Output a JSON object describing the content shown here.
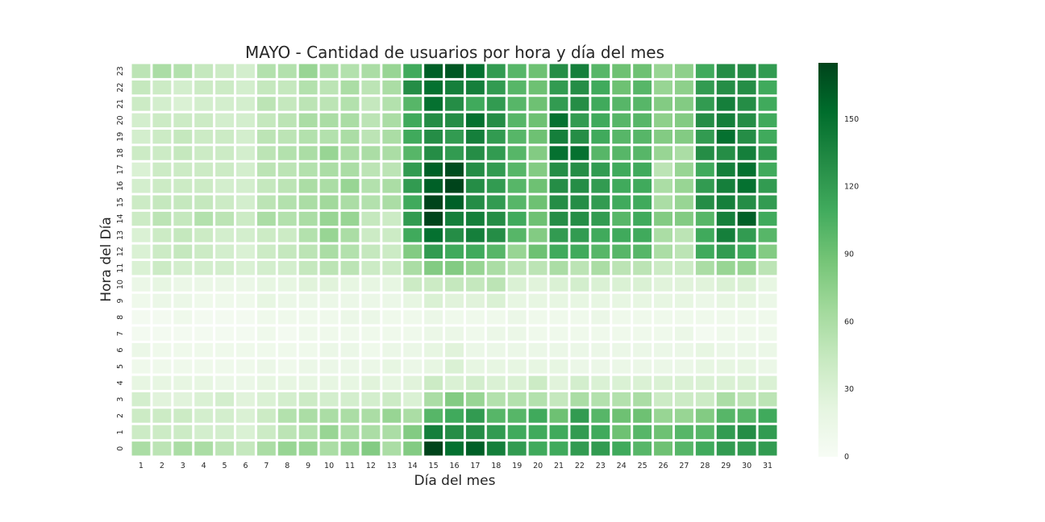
{
  "chart_data": {
    "type": "heatmap",
    "title": "MAYO - Cantidad de usuarios por hora y día del mes",
    "xlabel": "Día del mes",
    "ylabel": "Hora del Día",
    "x": [
      "1",
      "2",
      "3",
      "4",
      "5",
      "6",
      "7",
      "8",
      "9",
      "10",
      "11",
      "12",
      "13",
      "14",
      "15",
      "16",
      "17",
      "18",
      "19",
      "20",
      "21",
      "22",
      "23",
      "24",
      "25",
      "26",
      "27",
      "28",
      "29",
      "30",
      "31"
    ],
    "y": [
      "23",
      "22",
      "21",
      "20",
      "19",
      "18",
      "17",
      "16",
      "15",
      "14",
      "13",
      "12",
      "11",
      "10",
      "9",
      "8",
      "7",
      "6",
      "5",
      "4",
      "3",
      "2",
      "1",
      "0"
    ],
    "colorbar": {
      "ticks": [
        "0",
        "30",
        "60",
        "90",
        "120",
        "150"
      ],
      "range": [
        0,
        175
      ]
    },
    "colormap": [
      "#f7fcf5",
      "#e5f5e0",
      "#c7e9c0",
      "#a1d99b",
      "#74c476",
      "#41ab5d",
      "#238b45",
      "#006d2c",
      "#00441b"
    ],
    "grid": false,
    "values": [
      [
        50,
        60,
        55,
        45,
        40,
        35,
        55,
        55,
        70,
        60,
        55,
        60,
        70,
        110,
        160,
        165,
        150,
        120,
        100,
        90,
        130,
        140,
        100,
        90,
        90,
        70,
        75,
        110,
        130,
        130,
        120
      ],
      [
        45,
        40,
        35,
        40,
        40,
        35,
        45,
        45,
        55,
        50,
        60,
        50,
        60,
        130,
        150,
        140,
        140,
        120,
        100,
        90,
        120,
        130,
        110,
        90,
        100,
        70,
        75,
        120,
        130,
        130,
        110
      ],
      [
        40,
        35,
        30,
        35,
        35,
        35,
        50,
        45,
        50,
        50,
        55,
        45,
        55,
        100,
        150,
        130,
        110,
        120,
        100,
        90,
        120,
        130,
        110,
        100,
        100,
        80,
        80,
        120,
        140,
        130,
        110
      ],
      [
        35,
        40,
        40,
        40,
        35,
        35,
        45,
        50,
        60,
        60,
        60,
        50,
        60,
        110,
        130,
        130,
        150,
        130,
        100,
        90,
        150,
        120,
        110,
        100,
        100,
        75,
        80,
        130,
        140,
        130,
        110
      ],
      [
        35,
        40,
        45,
        40,
        40,
        35,
        50,
        50,
        55,
        55,
        60,
        50,
        60,
        110,
        130,
        120,
        140,
        120,
        100,
        90,
        140,
        130,
        110,
        100,
        100,
        80,
        80,
        120,
        150,
        130,
        110
      ],
      [
        40,
        40,
        45,
        40,
        40,
        35,
        50,
        55,
        60,
        70,
        60,
        60,
        60,
        100,
        130,
        120,
        130,
        120,
        100,
        80,
        150,
        150,
        100,
        100,
        100,
        70,
        60,
        130,
        130,
        140,
        120
      ],
      [
        30,
        40,
        40,
        40,
        40,
        35,
        50,
        50,
        55,
        60,
        60,
        50,
        50,
        120,
        160,
        170,
        130,
        120,
        100,
        80,
        130,
        130,
        120,
        110,
        110,
        50,
        70,
        110,
        140,
        150,
        110
      ],
      [
        35,
        40,
        40,
        40,
        35,
        35,
        45,
        50,
        60,
        60,
        70,
        55,
        60,
        120,
        160,
        185,
        130,
        120,
        100,
        90,
        130,
        130,
        120,
        110,
        110,
        60,
        70,
        120,
        140,
        150,
        120
      ],
      [
        40,
        45,
        45,
        45,
        40,
        35,
        50,
        55,
        60,
        65,
        60,
        55,
        60,
        110,
        175,
        160,
        130,
        120,
        100,
        90,
        130,
        130,
        120,
        110,
        110,
        60,
        70,
        130,
        140,
        130,
        120
      ],
      [
        40,
        50,
        45,
        55,
        50,
        40,
        60,
        55,
        60,
        70,
        70,
        45,
        40,
        120,
        175,
        140,
        140,
        130,
        110,
        90,
        130,
        130,
        120,
        100,
        110,
        80,
        80,
        100,
        140,
        160,
        110
      ],
      [
        30,
        40,
        45,
        40,
        35,
        35,
        40,
        40,
        55,
        70,
        60,
        40,
        40,
        110,
        150,
        130,
        140,
        130,
        100,
        80,
        120,
        120,
        110,
        110,
        110,
        60,
        50,
        110,
        140,
        120,
        100
      ],
      [
        30,
        40,
        45,
        40,
        35,
        30,
        40,
        45,
        50,
        60,
        55,
        45,
        40,
        80,
        120,
        110,
        110,
        100,
        70,
        90,
        110,
        110,
        100,
        100,
        100,
        60,
        50,
        110,
        120,
        110,
        80
      ],
      [
        30,
        40,
        35,
        35,
        35,
        30,
        35,
        35,
        45,
        50,
        50,
        40,
        40,
        60,
        80,
        80,
        70,
        60,
        50,
        50,
        60,
        50,
        60,
        50,
        50,
        40,
        40,
        60,
        70,
        70,
        50
      ],
      [
        15,
        20,
        15,
        15,
        15,
        15,
        20,
        20,
        25,
        25,
        20,
        20,
        20,
        40,
        40,
        45,
        45,
        50,
        30,
        25,
        30,
        35,
        30,
        30,
        30,
        25,
        25,
        25,
        30,
        30,
        20
      ],
      [
        10,
        15,
        15,
        10,
        10,
        10,
        20,
        15,
        15,
        15,
        15,
        15,
        15,
        20,
        30,
        25,
        25,
        30,
        20,
        20,
        20,
        20,
        20,
        20,
        20,
        20,
        20,
        15,
        20,
        20,
        15
      ],
      [
        5,
        5,
        10,
        5,
        5,
        5,
        10,
        10,
        10,
        10,
        15,
        15,
        10,
        10,
        15,
        10,
        10,
        10,
        15,
        10,
        10,
        10,
        15,
        10,
        10,
        10,
        10,
        10,
        10,
        10,
        10
      ],
      [
        5,
        5,
        5,
        5,
        5,
        5,
        10,
        5,
        10,
        10,
        10,
        10,
        10,
        10,
        15,
        15,
        10,
        15,
        15,
        10,
        10,
        10,
        10,
        10,
        10,
        10,
        15,
        5,
        10,
        10,
        10
      ],
      [
        15,
        10,
        10,
        10,
        10,
        10,
        10,
        10,
        10,
        15,
        15,
        10,
        15,
        15,
        20,
        25,
        15,
        15,
        15,
        15,
        15,
        15,
        15,
        15,
        15,
        15,
        15,
        20,
        15,
        15,
        15
      ],
      [
        10,
        10,
        10,
        10,
        10,
        10,
        15,
        10,
        15,
        15,
        15,
        15,
        20,
        15,
        20,
        30,
        20,
        20,
        20,
        20,
        20,
        15,
        15,
        15,
        15,
        15,
        15,
        20,
        20,
        20,
        15
      ],
      [
        20,
        20,
        20,
        20,
        15,
        15,
        20,
        20,
        20,
        20,
        20,
        25,
        20,
        25,
        40,
        30,
        35,
        30,
        30,
        40,
        25,
        35,
        30,
        30,
        30,
        30,
        30,
        30,
        30,
        30,
        30
      ],
      [
        35,
        25,
        25,
        30,
        35,
        25,
        30,
        35,
        40,
        35,
        35,
        35,
        40,
        30,
        60,
        80,
        70,
        55,
        55,
        55,
        45,
        60,
        55,
        55,
        60,
        40,
        40,
        40,
        60,
        50,
        50
      ],
      [
        40,
        40,
        40,
        35,
        35,
        30,
        40,
        55,
        60,
        60,
        60,
        60,
        70,
        60,
        100,
        110,
        120,
        100,
        100,
        110,
        90,
        120,
        100,
        90,
        90,
        70,
        70,
        80,
        100,
        100,
        110
      ],
      [
        40,
        40,
        40,
        35,
        35,
        30,
        40,
        50,
        55,
        70,
        60,
        60,
        60,
        80,
        140,
        130,
        130,
        120,
        110,
        110,
        110,
        120,
        110,
        90,
        100,
        90,
        100,
        100,
        120,
        130,
        120
      ],
      [
        60,
        50,
        60,
        60,
        50,
        45,
        60,
        70,
        70,
        60,
        70,
        80,
        60,
        80,
        175,
        150,
        160,
        140,
        120,
        110,
        110,
        120,
        120,
        110,
        100,
        90,
        100,
        110,
        120,
        120,
        120
      ]
    ]
  }
}
